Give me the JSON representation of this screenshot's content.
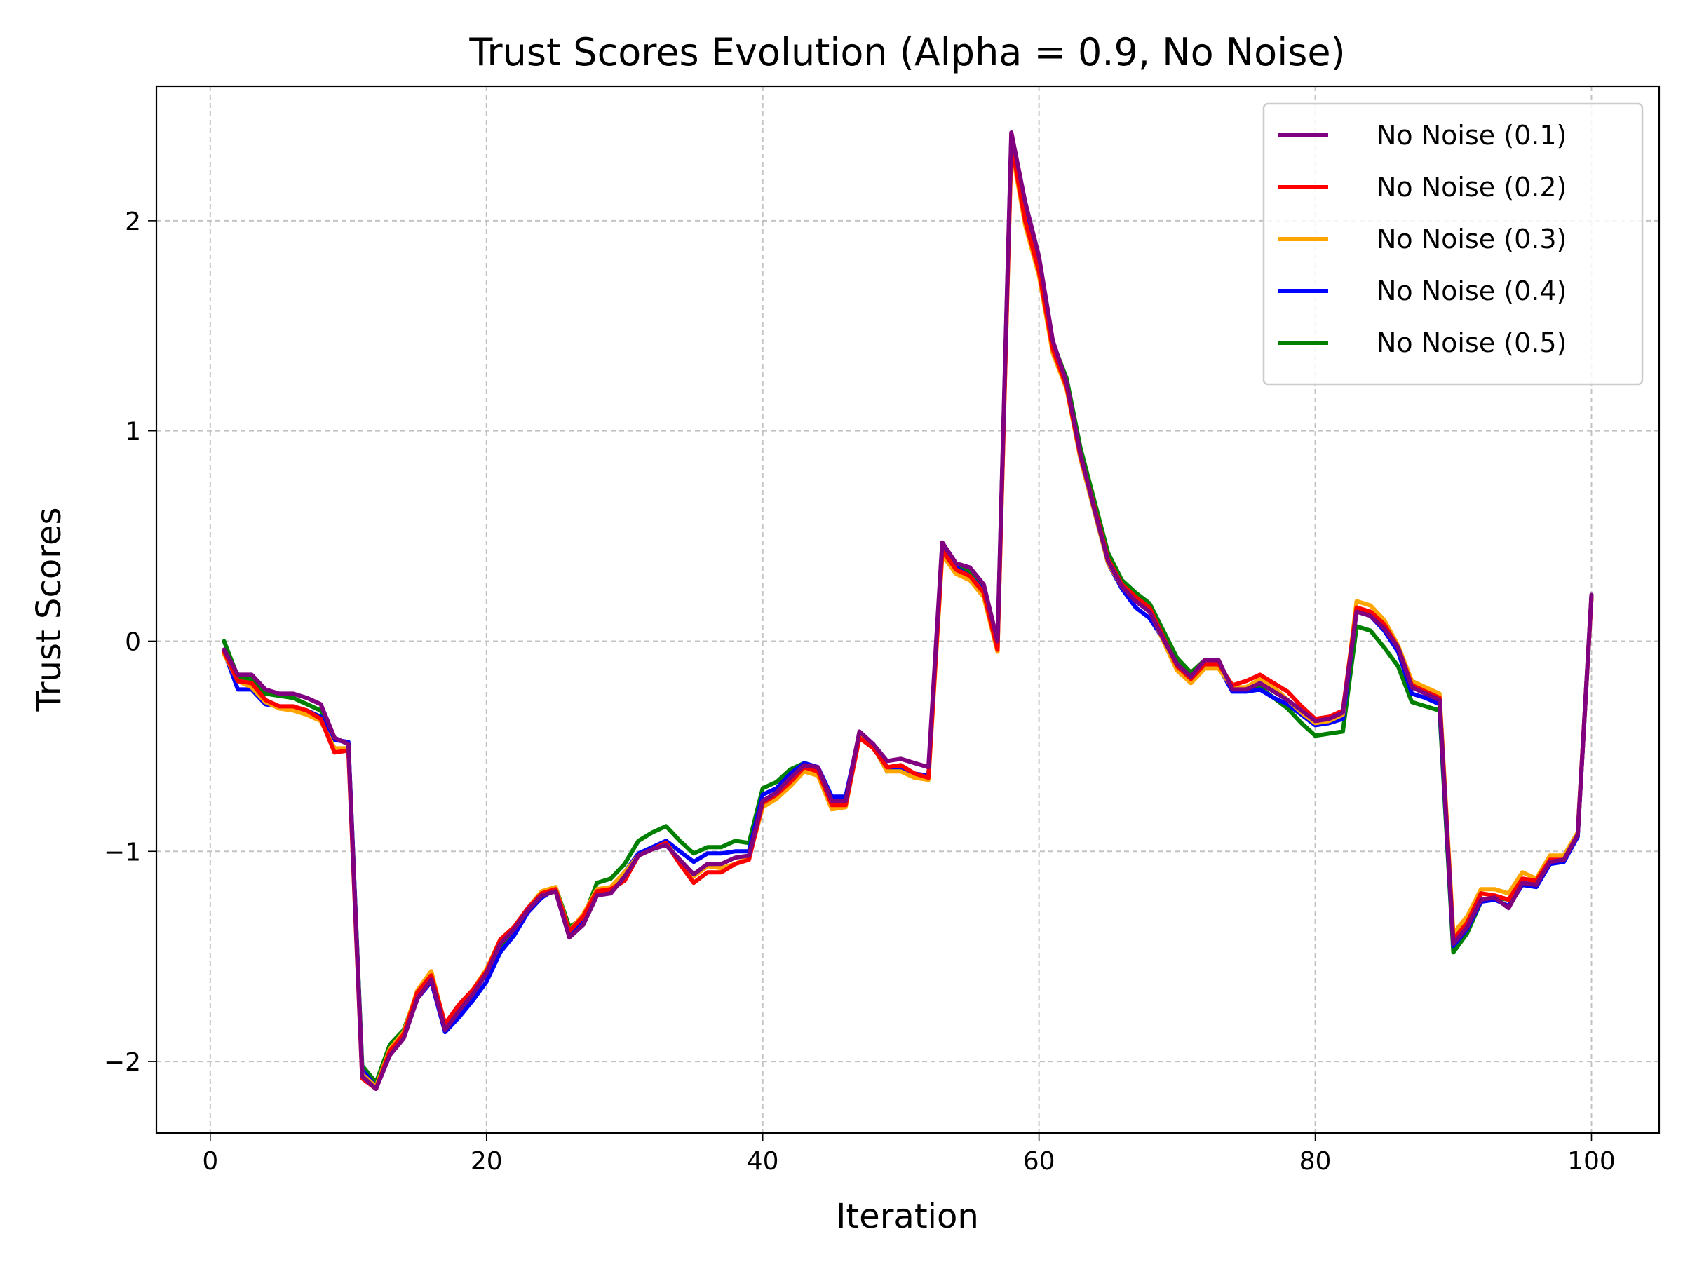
{
  "chart_data": {
    "type": "line",
    "title": "Trust Scores Evolution (Alpha = 0.9, No Noise)",
    "xlabel": "Iteration",
    "ylabel": "Trust Scores",
    "xlim": [
      -3.9,
      104.9
    ],
    "ylim": [
      -2.34,
      2.64
    ],
    "xticks": [
      0,
      20,
      40,
      60,
      80,
      100
    ],
    "yticks": [
      -2,
      -1,
      0,
      1,
      2
    ],
    "xtick_labels": [
      "0",
      "20",
      "40",
      "60",
      "80",
      "100"
    ],
    "ytick_labels": [
      "−2",
      "−1",
      "0",
      "1",
      "2"
    ],
    "grid": true,
    "legend_position": "upper right",
    "x": [
      1,
      2,
      3,
      4,
      5,
      6,
      7,
      8,
      9,
      10,
      11,
      12,
      13,
      14,
      15,
      16,
      17,
      18,
      19,
      20,
      21,
      22,
      23,
      24,
      25,
      26,
      27,
      28,
      29,
      30,
      31,
      32,
      33,
      34,
      35,
      36,
      37,
      38,
      39,
      40,
      41,
      42,
      43,
      44,
      45,
      46,
      47,
      48,
      49,
      50,
      51,
      52,
      53,
      54,
      55,
      56,
      57,
      58,
      59,
      60,
      61,
      62,
      63,
      64,
      65,
      66,
      67,
      68,
      69,
      70,
      71,
      72,
      73,
      74,
      75,
      76,
      77,
      78,
      79,
      80,
      81,
      82,
      83,
      84,
      85,
      86,
      87,
      88,
      89,
      90,
      91,
      92,
      93,
      94,
      95,
      96,
      97,
      98,
      99,
      100
    ],
    "series": [
      {
        "name": "No Noise (0.5)",
        "color": "#008000",
        "values": [
          0.0,
          -0.17,
          -0.18,
          -0.25,
          -0.26,
          -0.27,
          -0.3,
          -0.33,
          -0.46,
          -0.49,
          -2.02,
          -2.1,
          -1.92,
          -1.85,
          -1.67,
          -1.6,
          -1.85,
          -1.76,
          -1.68,
          -1.58,
          -1.46,
          -1.38,
          -1.28,
          -1.2,
          -1.17,
          -1.36,
          -1.32,
          -1.15,
          -1.13,
          -1.06,
          -0.95,
          -0.91,
          -0.88,
          -0.95,
          -1.01,
          -0.98,
          -0.98,
          -0.95,
          -0.96,
          -0.7,
          -0.67,
          -0.61,
          -0.58,
          -0.6,
          -0.77,
          -0.76,
          -0.44,
          -0.5,
          -0.62,
          -0.61,
          -0.64,
          -0.64,
          0.46,
          0.36,
          0.33,
          0.25,
          -0.02,
          2.39,
          2.05,
          1.8,
          1.42,
          1.25,
          0.92,
          0.67,
          0.42,
          0.29,
          0.23,
          0.18,
          0.05,
          -0.08,
          -0.15,
          -0.09,
          -0.1,
          -0.23,
          -0.22,
          -0.22,
          -0.27,
          -0.32,
          -0.39,
          -0.45,
          -0.44,
          -0.43,
          0.07,
          0.05,
          -0.03,
          -0.12,
          -0.29,
          -0.31,
          -0.33,
          -1.48,
          -1.39,
          -1.24,
          -1.22,
          -1.23,
          -1.16,
          -1.15,
          -1.06,
          -1.04,
          -0.93,
          0.22
        ]
      },
      {
        "name": "No Noise (0.4)",
        "color": "#0000ff",
        "values": [
          -0.05,
          -0.23,
          -0.23,
          -0.3,
          -0.31,
          -0.32,
          -0.33,
          -0.36,
          -0.47,
          -0.48,
          -2.04,
          -2.12,
          -1.96,
          -1.88,
          -1.7,
          -1.62,
          -1.86,
          -1.79,
          -1.71,
          -1.62,
          -1.48,
          -1.4,
          -1.29,
          -1.22,
          -1.18,
          -1.4,
          -1.34,
          -1.2,
          -1.18,
          -1.1,
          -1.01,
          -0.98,
          -0.95,
          -1.0,
          -1.05,
          -1.01,
          -1.01,
          -1.0,
          -1.0,
          -0.73,
          -0.7,
          -0.63,
          -0.58,
          -0.6,
          -0.74,
          -0.74,
          -0.44,
          -0.49,
          -0.6,
          -0.6,
          -0.63,
          -0.64,
          0.46,
          0.35,
          0.31,
          0.24,
          -0.03,
          2.39,
          2.04,
          1.8,
          1.42,
          1.22,
          0.87,
          0.62,
          0.37,
          0.25,
          0.16,
          0.11,
          0.01,
          -0.12,
          -0.18,
          -0.11,
          -0.12,
          -0.24,
          -0.24,
          -0.23,
          -0.27,
          -0.3,
          -0.35,
          -0.4,
          -0.39,
          -0.37,
          0.15,
          0.12,
          0.05,
          -0.05,
          -0.25,
          -0.27,
          -0.3,
          -1.45,
          -1.37,
          -1.24,
          -1.23,
          -1.26,
          -1.16,
          -1.17,
          -1.06,
          -1.05,
          -0.93,
          0.21
        ]
      },
      {
        "name": "No Noise (0.3)",
        "color": "#ffa500",
        "values": [
          -0.06,
          -0.19,
          -0.22,
          -0.29,
          -0.32,
          -0.33,
          -0.35,
          -0.38,
          -0.51,
          -0.51,
          -2.06,
          -2.12,
          -1.94,
          -1.86,
          -1.66,
          -1.57,
          -1.83,
          -1.74,
          -1.66,
          -1.56,
          -1.42,
          -1.36,
          -1.27,
          -1.19,
          -1.17,
          -1.38,
          -1.3,
          -1.18,
          -1.17,
          -1.1,
          -1.02,
          -0.99,
          -0.96,
          -1.05,
          -1.12,
          -1.07,
          -1.08,
          -1.06,
          -1.03,
          -0.79,
          -0.75,
          -0.69,
          -0.62,
          -0.64,
          -0.8,
          -0.79,
          -0.45,
          -0.5,
          -0.62,
          -0.62,
          -0.65,
          -0.66,
          0.41,
          0.32,
          0.29,
          0.21,
          -0.05,
          2.35,
          1.98,
          1.74,
          1.37,
          1.2,
          0.87,
          0.62,
          0.37,
          0.26,
          0.19,
          0.15,
          0.0,
          -0.14,
          -0.2,
          -0.13,
          -0.13,
          -0.22,
          -0.22,
          -0.18,
          -0.22,
          -0.28,
          -0.34,
          -0.39,
          -0.38,
          -0.35,
          0.19,
          0.17,
          0.1,
          -0.02,
          -0.19,
          -0.22,
          -0.25,
          -1.39,
          -1.31,
          -1.18,
          -1.18,
          -1.2,
          -1.1,
          -1.13,
          -1.02,
          -1.02,
          -0.91,
          0.21
        ]
      },
      {
        "name": "No Noise (0.2)",
        "color": "#ff0000",
        "values": [
          -0.05,
          -0.19,
          -0.2,
          -0.28,
          -0.31,
          -0.31,
          -0.33,
          -0.37,
          -0.53,
          -0.52,
          -2.08,
          -2.13,
          -1.95,
          -1.87,
          -1.67,
          -1.59,
          -1.82,
          -1.73,
          -1.66,
          -1.57,
          -1.42,
          -1.36,
          -1.27,
          -1.2,
          -1.18,
          -1.38,
          -1.31,
          -1.19,
          -1.18,
          -1.14,
          -1.02,
          -0.99,
          -0.96,
          -1.06,
          -1.15,
          -1.1,
          -1.1,
          -1.06,
          -1.04,
          -0.77,
          -0.73,
          -0.67,
          -0.6,
          -0.62,
          -0.78,
          -0.78,
          -0.46,
          -0.51,
          -0.6,
          -0.59,
          -0.63,
          -0.65,
          0.43,
          0.34,
          0.31,
          0.23,
          -0.04,
          2.37,
          2.0,
          1.76,
          1.39,
          1.21,
          0.88,
          0.64,
          0.39,
          0.27,
          0.21,
          0.16,
          0.02,
          -0.12,
          -0.18,
          -0.11,
          -0.11,
          -0.21,
          -0.19,
          -0.16,
          -0.2,
          -0.24,
          -0.31,
          -0.37,
          -0.36,
          -0.33,
          0.16,
          0.14,
          0.08,
          -0.03,
          -0.21,
          -0.24,
          -0.27,
          -1.42,
          -1.34,
          -1.2,
          -1.21,
          -1.23,
          -1.13,
          -1.14,
          -1.04,
          -1.04,
          -0.92,
          0.21
        ]
      },
      {
        "name": "No Noise (0.1)",
        "color": "#800080",
        "values": [
          -0.04,
          -0.16,
          -0.16,
          -0.23,
          -0.25,
          -0.25,
          -0.27,
          -0.3,
          -0.46,
          -0.49,
          -2.07,
          -2.13,
          -1.97,
          -1.89,
          -1.7,
          -1.61,
          -1.85,
          -1.76,
          -1.68,
          -1.58,
          -1.44,
          -1.37,
          -1.28,
          -1.21,
          -1.19,
          -1.41,
          -1.35,
          -1.21,
          -1.2,
          -1.12,
          -1.02,
          -0.99,
          -0.97,
          -1.04,
          -1.11,
          -1.06,
          -1.06,
          -1.03,
          -1.02,
          -0.76,
          -0.72,
          -0.65,
          -0.59,
          -0.6,
          -0.76,
          -0.76,
          -0.43,
          -0.49,
          -0.57,
          -0.56,
          -0.58,
          -0.6,
          0.47,
          0.37,
          0.35,
          0.27,
          0.0,
          2.42,
          2.09,
          1.83,
          1.43,
          1.23,
          0.89,
          0.63,
          0.38,
          0.26,
          0.19,
          0.14,
          0.01,
          -0.11,
          -0.17,
          -0.09,
          -0.09,
          -0.23,
          -0.23,
          -0.2,
          -0.24,
          -0.28,
          -0.33,
          -0.38,
          -0.37,
          -0.34,
          0.14,
          0.12,
          0.06,
          -0.03,
          -0.22,
          -0.25,
          -0.28,
          -1.44,
          -1.36,
          -1.23,
          -1.22,
          -1.27,
          -1.15,
          -1.16,
          -1.05,
          -1.04,
          -0.92,
          0.22
        ]
      }
    ],
    "legend": [
      {
        "label": "No Noise (0.1)",
        "color": "#800080"
      },
      {
        "label": "No Noise (0.2)",
        "color": "#ff0000"
      },
      {
        "label": "No Noise (0.3)",
        "color": "#ffa500"
      },
      {
        "label": "No Noise (0.4)",
        "color": "#0000ff"
      },
      {
        "label": "No Noise (0.5)",
        "color": "#008000"
      }
    ]
  }
}
